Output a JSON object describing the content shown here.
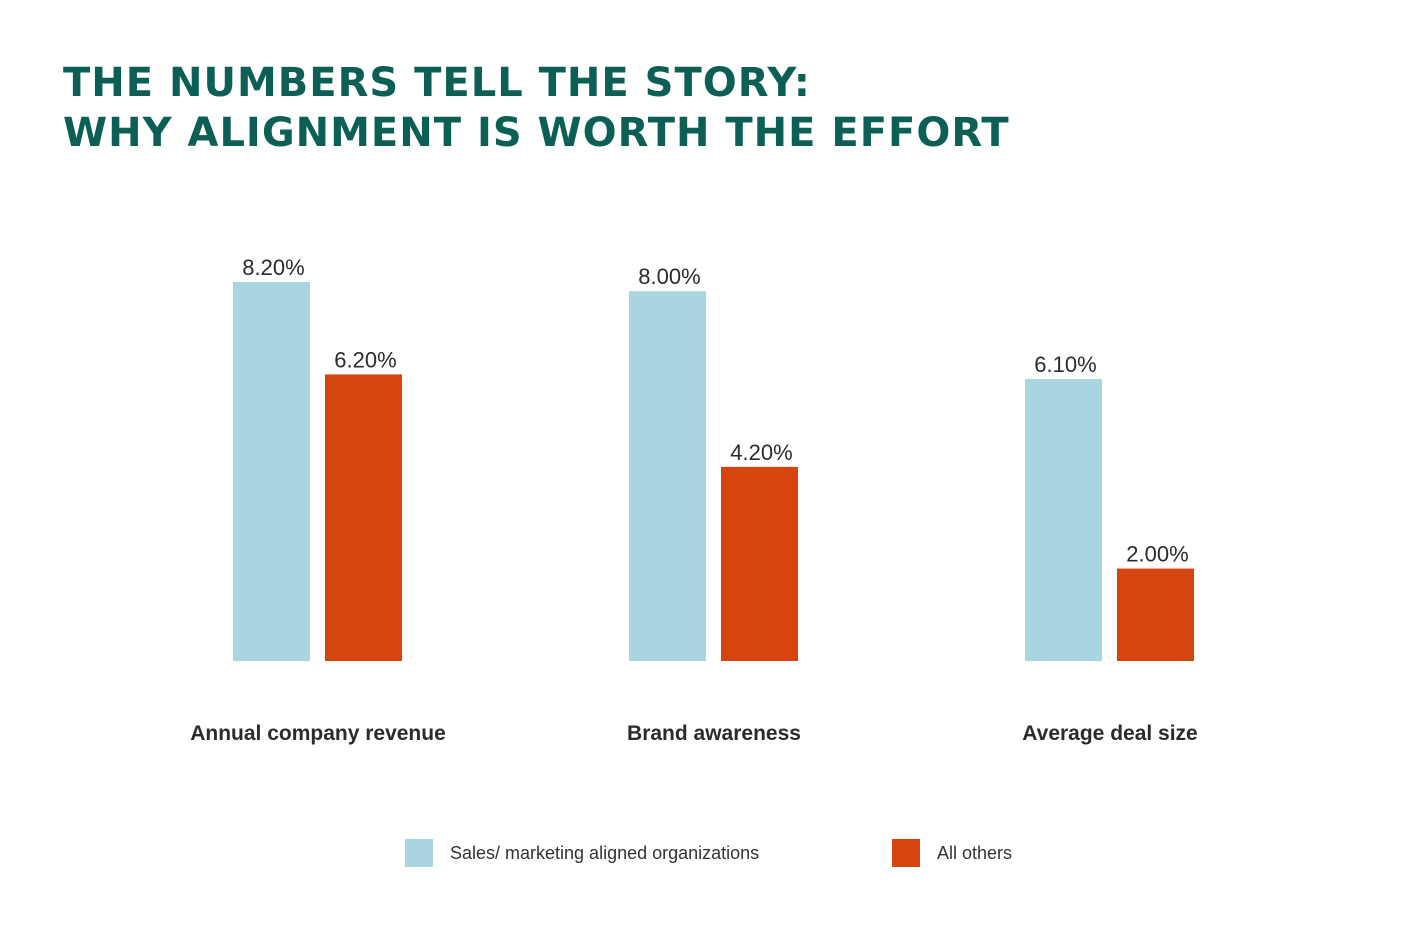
{
  "title_lines": [
    "THE NUMBERS TELL THE STORY:",
    "WHY ALIGNMENT IS WORTH THE EFFORT"
  ],
  "chart_data": {
    "type": "bar",
    "title": "THE NUMBERS TELL THE STORY: WHY ALIGNMENT IS WORTH THE EFFORT",
    "categories": [
      "Annual company revenue",
      "Brand awareness",
      "Average deal size"
    ],
    "series": [
      {
        "name": "Sales/ marketing aligned organizations",
        "values": [
          8.2,
          8.0,
          6.1
        ],
        "labels": [
          "8.20%",
          "8.00%",
          "6.10%"
        ],
        "color": "#a8d5df"
      },
      {
        "name": "All others",
        "values": [
          6.2,
          4.2,
          2.0
        ],
        "labels": [
          "6.20%",
          "4.20%",
          "2.00%"
        ],
        "color": "#d4450f"
      }
    ],
    "ylim": [
      0,
      8.2
    ],
    "grid": false,
    "legend_position": "bottom",
    "xlabel": "",
    "ylabel": ""
  }
}
